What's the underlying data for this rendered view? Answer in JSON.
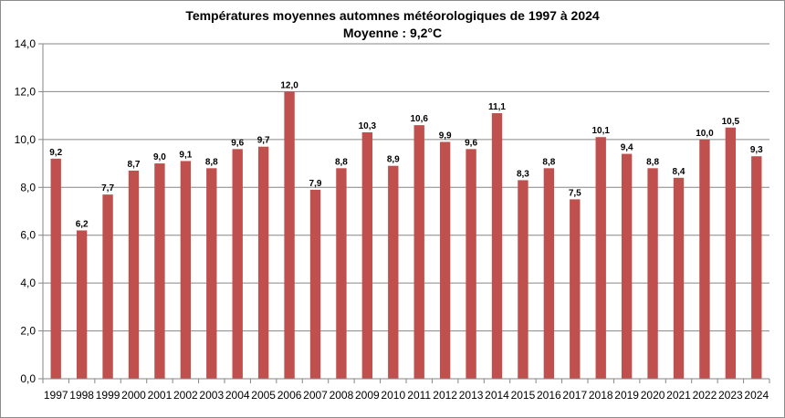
{
  "chart_data": {
    "type": "bar",
    "title": "Températures moyennes automnes météorologiques de 1997 à 2024",
    "subtitle": "Moyenne : 9,2°C",
    "xlabel": "",
    "ylabel": "",
    "ylim": [
      0,
      14
    ],
    "ytick_step": 2,
    "ytick_labels": [
      "0,0",
      "2,0",
      "4,0",
      "6,0",
      "8,0",
      "10,0",
      "12,0",
      "14,0"
    ],
    "grid": true,
    "legend": "none",
    "bar_color": "#c0504d",
    "categories": [
      "1997",
      "1998",
      "1999",
      "2000",
      "2001",
      "2002",
      "2003",
      "2004",
      "2005",
      "2006",
      "2007",
      "2008",
      "2009",
      "2010",
      "2011",
      "2012",
      "2013",
      "2014",
      "2015",
      "2016",
      "2017",
      "2018",
      "2019",
      "2020",
      "2021",
      "2022",
      "2023",
      "2024"
    ],
    "values": [
      9.2,
      6.2,
      7.7,
      8.7,
      9.0,
      9.1,
      8.8,
      9.6,
      9.7,
      12.0,
      7.9,
      8.8,
      10.3,
      8.9,
      10.6,
      9.9,
      9.6,
      11.1,
      8.3,
      8.8,
      7.5,
      10.1,
      9.4,
      8.8,
      8.4,
      10.0,
      10.5,
      9.3
    ],
    "data_labels": [
      "9,2",
      "6,2",
      "7,7",
      "8,7",
      "9,0",
      "9,1",
      "8,8",
      "9,6",
      "9,7",
      "12,0",
      "7,9",
      "8,8",
      "10,3",
      "8,9",
      "10,6",
      "9,9",
      "9,6",
      "11,1",
      "8,3",
      "8,8",
      "7,5",
      "10,1",
      "9,4",
      "8,8",
      "8,4",
      "10,0",
      "10,5",
      "9,3"
    ]
  }
}
